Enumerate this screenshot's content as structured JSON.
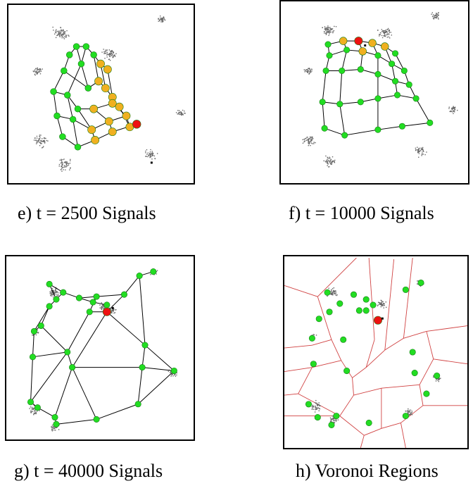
{
  "panels": [
    {
      "id": "e",
      "caption": "e)  t = 2500 Signals"
    },
    {
      "id": "f",
      "caption": "f)  t = 10000 Signals"
    },
    {
      "id": "g",
      "caption": "g)  t = 40000 Signals"
    },
    {
      "id": "h",
      "caption": "h)  Voronoi Regions"
    }
  ],
  "colors": {
    "node": "#22dd22",
    "node_stroke": "#157a15",
    "winner": "#ee1111",
    "neighbor": "#f0b020",
    "edge": "#000000",
    "voronoi": "#d04040",
    "signal": "#666666"
  }
}
